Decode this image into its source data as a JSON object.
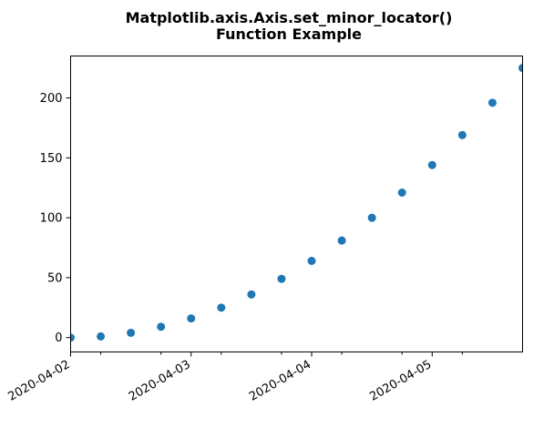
{
  "chart_data": {
    "type": "scatter",
    "title": [
      "Matplotlib.axis.Axis.set_minor_locator()",
      "Function Example"
    ],
    "xlabel": "",
    "ylabel": "",
    "x_is_date": true,
    "xlim": [
      "2020-04-02 00:00",
      "2020-04-05 18:00"
    ],
    "ylim": [
      -12,
      235
    ],
    "x_major_ticks": [
      "2020-04-02",
      "2020-04-03",
      "2020-04-04",
      "2020-04-05"
    ],
    "x_minor_ticks": [
      "2020-04-02 06:00",
      "2020-04-02 18:00",
      "2020-04-03 06:00",
      "2020-04-03 18:00",
      "2020-04-04 06:00",
      "2020-04-04 18:00",
      "2020-04-05 06:00"
    ],
    "y_ticks": [
      0,
      50,
      100,
      150,
      200
    ],
    "grid": false,
    "color": "#1f77b4",
    "series": [
      {
        "x": [
          "2020-04-02 00:00",
          "2020-04-02 06:00",
          "2020-04-02 12:00",
          "2020-04-02 18:00",
          "2020-04-03 00:00",
          "2020-04-03 06:00",
          "2020-04-03 12:00",
          "2020-04-03 18:00",
          "2020-04-04 00:00",
          "2020-04-04 06:00",
          "2020-04-04 12:00",
          "2020-04-04 18:00",
          "2020-04-05 00:00",
          "2020-04-05 06:00",
          "2020-04-05 12:00",
          "2020-04-05 18:00"
        ],
        "y": [
          0,
          1,
          4,
          9,
          16,
          25,
          36,
          49,
          64,
          81,
          100,
          121,
          144,
          169,
          196,
          225
        ]
      }
    ]
  }
}
